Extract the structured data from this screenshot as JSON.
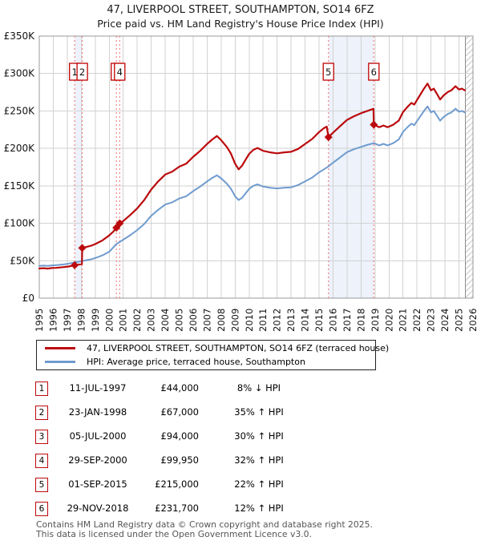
{
  "header": {
    "title": "47, LIVERPOOL STREET, SOUTHAMPTON, SO14 6FZ",
    "subtitle": "Price paid vs. HM Land Registry's House Price Index (HPI)"
  },
  "chart_data": {
    "type": "line",
    "xlim": [
      1995,
      2026
    ],
    "ylim": [
      0,
      350
    ],
    "grid": true,
    "x_ticks": [
      1995,
      1996,
      1997,
      1998,
      1999,
      2000,
      2001,
      2002,
      2003,
      2004,
      2005,
      2006,
      2007,
      2008,
      2009,
      2010,
      2011,
      2012,
      2013,
      2014,
      2015,
      2016,
      2017,
      2018,
      2019,
      2020,
      2021,
      2022,
      2023,
      2024,
      2025,
      2026
    ],
    "y_ticks": [
      {
        "v": 0,
        "label": "£0"
      },
      {
        "v": 50,
        "label": "£50K"
      },
      {
        "v": 100,
        "label": "£100K"
      },
      {
        "v": 150,
        "label": "£150K"
      },
      {
        "v": 200,
        "label": "£200K"
      },
      {
        "v": 250,
        "label": "£250K"
      },
      {
        "v": 300,
        "label": "£300K"
      },
      {
        "v": 350,
        "label": "£350K"
      }
    ],
    "future_hatch_start": 2025.45,
    "shaded_bands": [
      [
        1997.53,
        1998.07
      ],
      [
        2015.67,
        2018.91
      ]
    ],
    "event_line_color": "#f27b7b",
    "band_color": "#edf2fb",
    "grid_color": "#d2d2d2",
    "series": [
      {
        "name": "HPI: Average price, terraced house, Southampton",
        "color": "#6f9bce",
        "width": 2,
        "points": [
          [
            1995.0,
            43
          ],
          [
            1995.3,
            43.5
          ],
          [
            1995.6,
            43
          ],
          [
            1995.9,
            43.8
          ],
          [
            1996.2,
            44
          ],
          [
            1996.5,
            44.5
          ],
          [
            1996.8,
            45.2
          ],
          [
            1997.1,
            46
          ],
          [
            1997.53,
            47.8
          ],
          [
            1997.8,
            48.6
          ],
          [
            1998.07,
            49.6
          ],
          [
            1998.4,
            50.8
          ],
          [
            1998.7,
            51.8
          ],
          [
            1999.0,
            53.5
          ],
          [
            1999.5,
            57
          ],
          [
            2000.0,
            62
          ],
          [
            2000.5,
            72
          ],
          [
            2000.75,
            75
          ],
          [
            2001.0,
            78
          ],
          [
            2001.5,
            84
          ],
          [
            2002.0,
            91
          ],
          [
            2002.5,
            99
          ],
          [
            2003.0,
            110
          ],
          [
            2003.5,
            118
          ],
          [
            2004.0,
            125
          ],
          [
            2004.5,
            128
          ],
          [
            2005.0,
            133
          ],
          [
            2005.5,
            136
          ],
          [
            2006.0,
            143
          ],
          [
            2006.5,
            149
          ],
          [
            2007.0,
            156
          ],
          [
            2007.4,
            161
          ],
          [
            2007.7,
            164
          ],
          [
            2008.0,
            160
          ],
          [
            2008.4,
            153
          ],
          [
            2008.7,
            146
          ],
          [
            2009.0,
            136
          ],
          [
            2009.25,
            131
          ],
          [
            2009.5,
            134
          ],
          [
            2009.75,
            140
          ],
          [
            2010.0,
            146
          ],
          [
            2010.3,
            150
          ],
          [
            2010.6,
            152
          ],
          [
            2011.0,
            149
          ],
          [
            2011.5,
            147.5
          ],
          [
            2012.0,
            146.5
          ],
          [
            2012.5,
            147.5
          ],
          [
            2013.0,
            148
          ],
          [
            2013.5,
            151
          ],
          [
            2014.0,
            156
          ],
          [
            2014.5,
            161
          ],
          [
            2015.0,
            168
          ],
          [
            2015.35,
            172
          ],
          [
            2015.67,
            176
          ],
          [
            2016.0,
            181
          ],
          [
            2016.5,
            188
          ],
          [
            2017.0,
            195
          ],
          [
            2017.5,
            199
          ],
          [
            2018.0,
            202
          ],
          [
            2018.5,
            205
          ],
          [
            2018.91,
            207
          ],
          [
            2019.3,
            204
          ],
          [
            2019.6,
            206
          ],
          [
            2019.9,
            204
          ],
          [
            2020.3,
            207
          ],
          [
            2020.7,
            212
          ],
          [
            2021.0,
            222
          ],
          [
            2021.3,
            228
          ],
          [
            2021.6,
            233
          ],
          [
            2021.8,
            231
          ],
          [
            2022.2,
            242
          ],
          [
            2022.5,
            250
          ],
          [
            2022.75,
            256
          ],
          [
            2023.0,
            248
          ],
          [
            2023.2,
            250
          ],
          [
            2023.45,
            243
          ],
          [
            2023.65,
            237
          ],
          [
            2023.9,
            242
          ],
          [
            2024.2,
            246
          ],
          [
            2024.45,
            248
          ],
          [
            2024.75,
            253
          ],
          [
            2025.0,
            249
          ],
          [
            2025.2,
            250
          ],
          [
            2025.42,
            248
          ]
        ]
      },
      {
        "name": "47, LIVERPOOL STREET, SOUTHAMPTON, SO14 6FZ (terraced house)",
        "color": "#bb0a0d",
        "width": 2.2,
        "points": [
          [
            1995.0,
            39.6
          ],
          [
            1995.3,
            40
          ],
          [
            1995.6,
            39.5
          ],
          [
            1995.9,
            40.2
          ],
          [
            1996.2,
            40.5
          ],
          [
            1996.5,
            41
          ],
          [
            1996.8,
            41.6
          ],
          [
            1997.1,
            42.3
          ],
          [
            1997.53,
            44
          ],
          [
            1997.8,
            44.7
          ],
          [
            1998.05,
            45.6
          ],
          [
            1998.07,
            67
          ],
          [
            1998.4,
            68.6
          ],
          [
            1998.7,
            70
          ],
          [
            1999.0,
            72.3
          ],
          [
            1999.5,
            77
          ],
          [
            2000.0,
            83.8
          ],
          [
            2000.3,
            89
          ],
          [
            2000.51,
            94
          ],
          [
            2000.75,
            99.95
          ],
          [
            2001.0,
            103
          ],
          [
            2001.5,
            111
          ],
          [
            2002.0,
            120
          ],
          [
            2002.5,
            131
          ],
          [
            2003.0,
            145
          ],
          [
            2003.5,
            156
          ],
          [
            2004.0,
            165
          ],
          [
            2004.5,
            169
          ],
          [
            2005.0,
            175.5
          ],
          [
            2005.5,
            179.5
          ],
          [
            2006.0,
            188.8
          ],
          [
            2006.5,
            196.7
          ],
          [
            2007.0,
            206
          ],
          [
            2007.4,
            212.5
          ],
          [
            2007.7,
            216.5
          ],
          [
            2008.0,
            211
          ],
          [
            2008.4,
            202
          ],
          [
            2008.7,
            193
          ],
          [
            2009.0,
            179.5
          ],
          [
            2009.25,
            172
          ],
          [
            2009.5,
            177
          ],
          [
            2009.75,
            185
          ],
          [
            2010.0,
            192.7
          ],
          [
            2010.3,
            198
          ],
          [
            2010.6,
            200.6
          ],
          [
            2011.0,
            196.7
          ],
          [
            2011.5,
            194.7
          ],
          [
            2012.0,
            193.4
          ],
          [
            2012.5,
            194.7
          ],
          [
            2013.0,
            195.4
          ],
          [
            2013.5,
            199.3
          ],
          [
            2014.0,
            205.9
          ],
          [
            2014.5,
            212.5
          ],
          [
            2015.0,
            221.8
          ],
          [
            2015.35,
            227
          ],
          [
            2015.55,
            229
          ],
          [
            2015.67,
            215
          ],
          [
            2016.0,
            221
          ],
          [
            2016.5,
            229.7
          ],
          [
            2017.0,
            238
          ],
          [
            2017.5,
            243
          ],
          [
            2018.0,
            247
          ],
          [
            2018.5,
            250.4
          ],
          [
            2018.89,
            252.9
          ],
          [
            2018.91,
            231.7
          ],
          [
            2019.3,
            228.3
          ],
          [
            2019.6,
            230.5
          ],
          [
            2019.9,
            228.3
          ],
          [
            2020.3,
            231.6
          ],
          [
            2020.7,
            237.2
          ],
          [
            2021.0,
            248.4
          ],
          [
            2021.3,
            255.1
          ],
          [
            2021.6,
            260.7
          ],
          [
            2021.8,
            258.5
          ],
          [
            2022.2,
            270.8
          ],
          [
            2022.5,
            279.8
          ],
          [
            2022.75,
            286.5
          ],
          [
            2023.0,
            277.5
          ],
          [
            2023.2,
            279.8
          ],
          [
            2023.45,
            272
          ],
          [
            2023.65,
            265.2
          ],
          [
            2023.9,
            270.8
          ],
          [
            2024.2,
            275.3
          ],
          [
            2024.45,
            277.5
          ],
          [
            2024.75,
            283.1
          ],
          [
            2025.0,
            278.6
          ],
          [
            2025.2,
            279.8
          ],
          [
            2025.42,
            277.5
          ]
        ]
      }
    ],
    "sales": [
      {
        "n": "1",
        "x": 1997.53,
        "y": 44
      },
      {
        "n": "2",
        "x": 1998.07,
        "y": 67
      },
      {
        "n": "3",
        "x": 2000.51,
        "y": 94
      },
      {
        "n": "4",
        "x": 2000.75,
        "y": 99.95
      },
      {
        "n": "5",
        "x": 2015.67,
        "y": 215
      },
      {
        "n": "6",
        "x": 2018.91,
        "y": 231.7
      }
    ]
  },
  "legend": {
    "items": [
      {
        "label": "47, LIVERPOOL STREET, SOUTHAMPTON, SO14 6FZ (terraced house)",
        "color": "#bb0a0d"
      },
      {
        "label": "HPI: Average price, terraced house, Southampton",
        "color": "#6f9bce"
      }
    ]
  },
  "table": {
    "rows": [
      {
        "num": "1",
        "date": "11-JUL-1997",
        "price": "£44,000",
        "pct": "8% ↓ HPI"
      },
      {
        "num": "2",
        "date": "23-JAN-1998",
        "price": "£67,000",
        "pct": "35% ↑ HPI"
      },
      {
        "num": "3",
        "date": "05-JUL-2000",
        "price": "£94,000",
        "pct": "30% ↑ HPI"
      },
      {
        "num": "4",
        "date": "29-SEP-2000",
        "price": "£99,950",
        "pct": "32% ↑ HPI"
      },
      {
        "num": "5",
        "date": "01-SEP-2015",
        "price": "£215,000",
        "pct": "22% ↑ HPI"
      },
      {
        "num": "6",
        "date": "29-NOV-2018",
        "price": "£231,700",
        "pct": "12% ↑ HPI"
      }
    ]
  },
  "footer": {
    "line1": "Contains HM Land Registry data © Crown copyright and database right 2025.",
    "line2": "This data is licensed under the Open Government Licence v3.0."
  }
}
